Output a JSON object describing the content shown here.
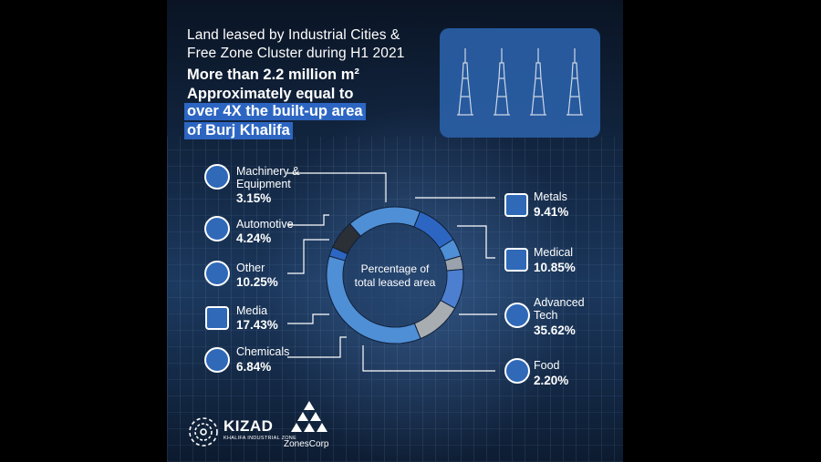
{
  "heading": {
    "line1": "Land leased by Industrial Cities &",
    "line2": "Free Zone Cluster during H1 2021",
    "bold1": "More than 2.2 million m²",
    "bold2": "Approximately equal to",
    "hl1": "over 4X the built-up area",
    "hl2": "of Burj Khalifa"
  },
  "center_label_1": "Percentage of",
  "center_label_2": "total leased area",
  "chart_data": {
    "type": "pie",
    "variant": "donut",
    "center_label": "Percentage of total leased area",
    "categories": [
      "Advanced Tech",
      "Food",
      "Chemicals",
      "Media",
      "Other",
      "Automotive",
      "Machinery & Equipment",
      "Metals",
      "Medical"
    ],
    "values": [
      35.62,
      2.2,
      6.84,
      17.43,
      10.25,
      4.24,
      3.15,
      9.41,
      10.85
    ],
    "labels": [
      {
        "name1": "Advanced",
        "name2": "Tech",
        "pct": "35.62%"
      },
      {
        "name1": "Food",
        "name2": "",
        "pct": "2.20%"
      },
      {
        "name1": "Chemicals",
        "name2": "",
        "pct": "6.84%"
      },
      {
        "name1": "Media",
        "name2": "",
        "pct": "17.43%"
      },
      {
        "name1": "Other",
        "name2": "",
        "pct": "10.25%"
      },
      {
        "name1": "Automotive",
        "name2": "",
        "pct": "4.24%"
      },
      {
        "name1": "Machinery &",
        "name2": "Equipment",
        "pct": "3.15%"
      },
      {
        "name1": "Metals",
        "name2": "",
        "pct": "9.41%"
      },
      {
        "name1": "Medical",
        "name2": "",
        "pct": "10.85%"
      }
    ],
    "colors": [
      "#4f8fd6",
      "#2d66c2",
      "#2b2f36",
      "#4f8fd6",
      "#2d66c2",
      "#4f8fd6",
      "#9aa3ad",
      "#4d7fd0",
      "#a8adb2"
    ]
  },
  "logos": {
    "kizad": "KIZAD",
    "kizad_sub": "KHALIFA INDUSTRIAL ZONE",
    "zonescorp": "ZonesCorp"
  },
  "icons": [
    "machinery-icon",
    "automotive-icon",
    "other-icon",
    "media-icon",
    "chemicals-icon",
    "metals-icon",
    "medical-icon",
    "advanced-tech-icon",
    "food-icon"
  ]
}
